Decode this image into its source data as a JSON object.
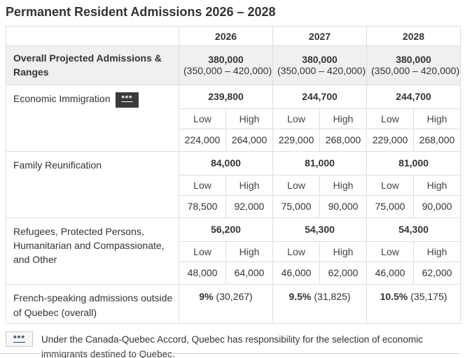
{
  "page": {
    "title": "Permanent Resident Admissions 2026 – 2028"
  },
  "table": {
    "year_headers": [
      "2026",
      "2027",
      "2028"
    ],
    "low_label": "Low",
    "high_label": "High",
    "overall": {
      "label": "Overall Projected Admissions & Ranges",
      "years": [
        {
          "value": "380,000",
          "range": "(350,000 – 420,000)"
        },
        {
          "value": "380,000",
          "range": "(350,000 – 420,000)"
        },
        {
          "value": "380,000",
          "range": "(350,000 – 420,000)"
        }
      ]
    },
    "sections": [
      {
        "label": "Economic Immigration",
        "footnote_marker": "***",
        "years": [
          {
            "main": "239,800",
            "low": "224,000",
            "high": "264,000"
          },
          {
            "main": "244,700",
            "low": "229,000",
            "high": "268,000"
          },
          {
            "main": "244,700",
            "low": "229,000",
            "high": "268,000"
          }
        ]
      },
      {
        "label": "Family Reunification",
        "years": [
          {
            "main": "84,000",
            "low": "78,500",
            "high": "92,000"
          },
          {
            "main": "81,000",
            "low": "75,000",
            "high": "90,000"
          },
          {
            "main": "81,000",
            "low": "75,000",
            "high": "90,000"
          }
        ]
      },
      {
        "label": "Refugees, Protected Persons, Humanitarian and Compassionate, and Other",
        "years": [
          {
            "main": "56,200",
            "low": "48,000",
            "high": "64,000"
          },
          {
            "main": "54,300",
            "low": "46,000",
            "high": "62,000"
          },
          {
            "main": "54,300",
            "low": "46,000",
            "high": "62,000"
          }
        ]
      }
    ],
    "french_row": {
      "label": "French-speaking admissions outside of Quebec (overall)",
      "years": [
        {
          "percent": "9%",
          "count": "(30,267)"
        },
        {
          "percent": "9.5%",
          "count": "(31,825)"
        },
        {
          "percent": "10.5%",
          "count": "(35,175)"
        }
      ]
    }
  },
  "footnote": {
    "marker": "***",
    "text": "Under the Canada-Quebec Accord, Quebec has responsibility for the selection of economic immigrants destined to Quebec."
  }
}
